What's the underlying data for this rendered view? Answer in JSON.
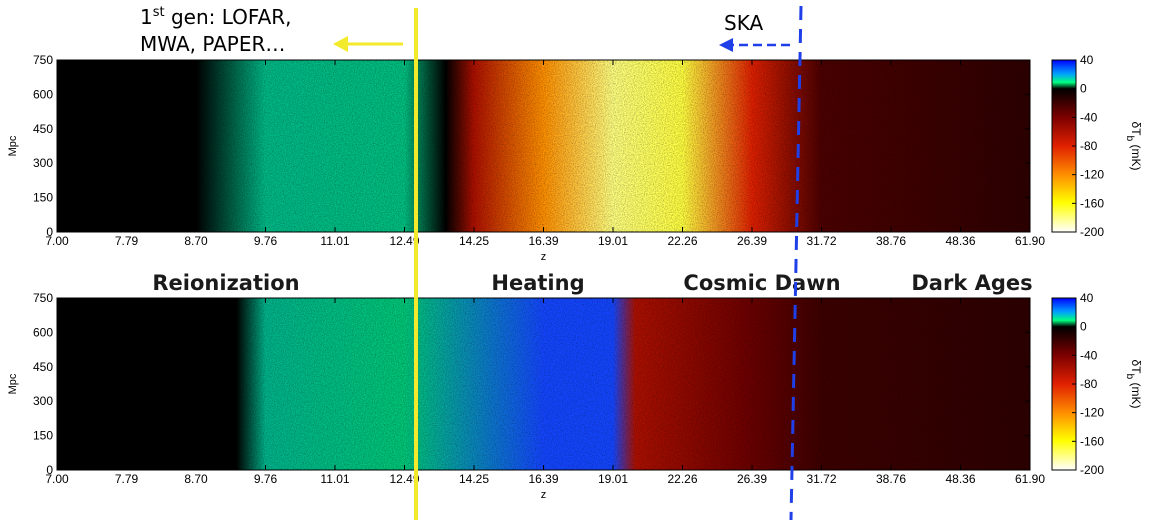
{
  "chart_data": [
    {
      "type": "heatmap",
      "panel": "top",
      "xlabel": "z",
      "ylabel": "Mpc",
      "x_tick_labels": [
        "7.00",
        "7.79",
        "8.70",
        "9.76",
        "11.01",
        "12.49",
        "14.25",
        "16.39",
        "19.01",
        "22.26",
        "26.39",
        "31.72",
        "38.76",
        "48.36",
        "61.90"
      ],
      "y_tick_labels": [
        "0",
        "150",
        "300",
        "450",
        "600",
        "750"
      ],
      "ylim": [
        0,
        750
      ],
      "colorbar": {
        "label": "δT",
        "label_subscript": "b",
        "label_units": "(mK)",
        "ticks": [
          "40",
          "0",
          "-40",
          "-80",
          "-120",
          "-160",
          "-200"
        ],
        "range": [
          -200,
          40
        ]
      },
      "brightness_profile_mK": [
        {
          "z": "7.00",
          "dTb": 0
        },
        {
          "z": "8.70",
          "dTb": 0
        },
        {
          "z": "9.76",
          "dTb": 15
        },
        {
          "z": "12.49",
          "dTb": 20
        },
        {
          "z": "13.5",
          "dTb": 0
        },
        {
          "z": "14.25",
          "dTb": -60
        },
        {
          "z": "16.39",
          "dTb": -120
        },
        {
          "z": "19.01",
          "dTb": -180
        },
        {
          "z": "22.26",
          "dTb": -170
        },
        {
          "z": "26.39",
          "dTb": -80
        },
        {
          "z": "31.72",
          "dTb": -25
        },
        {
          "z": "61.90",
          "dTb": -15
        }
      ]
    },
    {
      "type": "heatmap",
      "panel": "bottom",
      "xlabel": "z",
      "ylabel": "Mpc",
      "x_tick_labels": [
        "7.00",
        "7.79",
        "8.70",
        "9.76",
        "11.01",
        "12.49",
        "14.25",
        "16.39",
        "19.01",
        "22.26",
        "26.39",
        "31.72",
        "38.76",
        "48.36",
        "61.90"
      ],
      "y_tick_labels": [
        "0",
        "150",
        "300",
        "450",
        "600",
        "750"
      ],
      "ylim": [
        0,
        750
      ],
      "colorbar": {
        "label": "δT",
        "label_subscript": "b",
        "label_units": "(mK)",
        "ticks": [
          "40",
          "0",
          "-40",
          "-80",
          "-120",
          "-160",
          "-200"
        ],
        "range": [
          -200,
          40
        ]
      },
      "brightness_profile_mK": [
        {
          "z": "7.00",
          "dTb": 0
        },
        {
          "z": "9.3",
          "dTb": 0
        },
        {
          "z": "9.76",
          "dTb": 12
        },
        {
          "z": "12.49",
          "dTb": 25
        },
        {
          "z": "16.39",
          "dTb": 35
        },
        {
          "z": "19.01",
          "dTb": 35
        },
        {
          "z": "20.0",
          "dTb": -60
        },
        {
          "z": "26.39",
          "dTb": -35
        },
        {
          "z": "31.72",
          "dTb": -20
        },
        {
          "z": "61.90",
          "dTb": -15
        }
      ]
    }
  ],
  "epochs": [
    "Reionization",
    "Heating",
    "Cosmic Dawn",
    "Dark Ages"
  ],
  "annotations": {
    "lofar_line1_base": "1",
    "lofar_line1_sup": "st",
    "lofar_line1_rest": " gen: LOFAR,",
    "lofar_line2": "MWA, PAPER…",
    "ska": "SKA"
  },
  "colors": {
    "lofar_line": "#f2ea2a",
    "ska_line": "#1f3fe8"
  }
}
